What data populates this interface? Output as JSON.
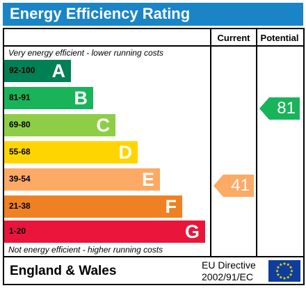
{
  "title": "Energy Efficiency Rating",
  "headers": {
    "current": "Current",
    "potential": "Potential"
  },
  "notes": {
    "top": "Very energy efficient - lower running costs",
    "bottom": "Not energy efficient - higher running costs"
  },
  "bands": [
    {
      "range": "92-100",
      "letter": "A",
      "color": "#008054"
    },
    {
      "range": "81-91",
      "letter": "B",
      "color": "#19b459"
    },
    {
      "range": "69-80",
      "letter": "C",
      "color": "#8dce46"
    },
    {
      "range": "55-68",
      "letter": "D",
      "color": "#ffd500"
    },
    {
      "range": "39-54",
      "letter": "E",
      "color": "#fcaa65"
    },
    {
      "range": "21-38",
      "letter": "F",
      "color": "#ef8023"
    },
    {
      "range": "1-20",
      "letter": "G",
      "color": "#e9153b"
    }
  ],
  "current": {
    "value": "41",
    "color": "#fcaa65"
  },
  "potential": {
    "value": "81",
    "color": "#19b459"
  },
  "footer": {
    "region": "England & Wales",
    "directive_line1": "EU Directive",
    "directive_line2": "2002/91/EC"
  },
  "colors": {
    "title_bar": "#1a85c6",
    "eu_flag": "#0e3d9c",
    "eu_stars": "#ffdd00"
  }
}
